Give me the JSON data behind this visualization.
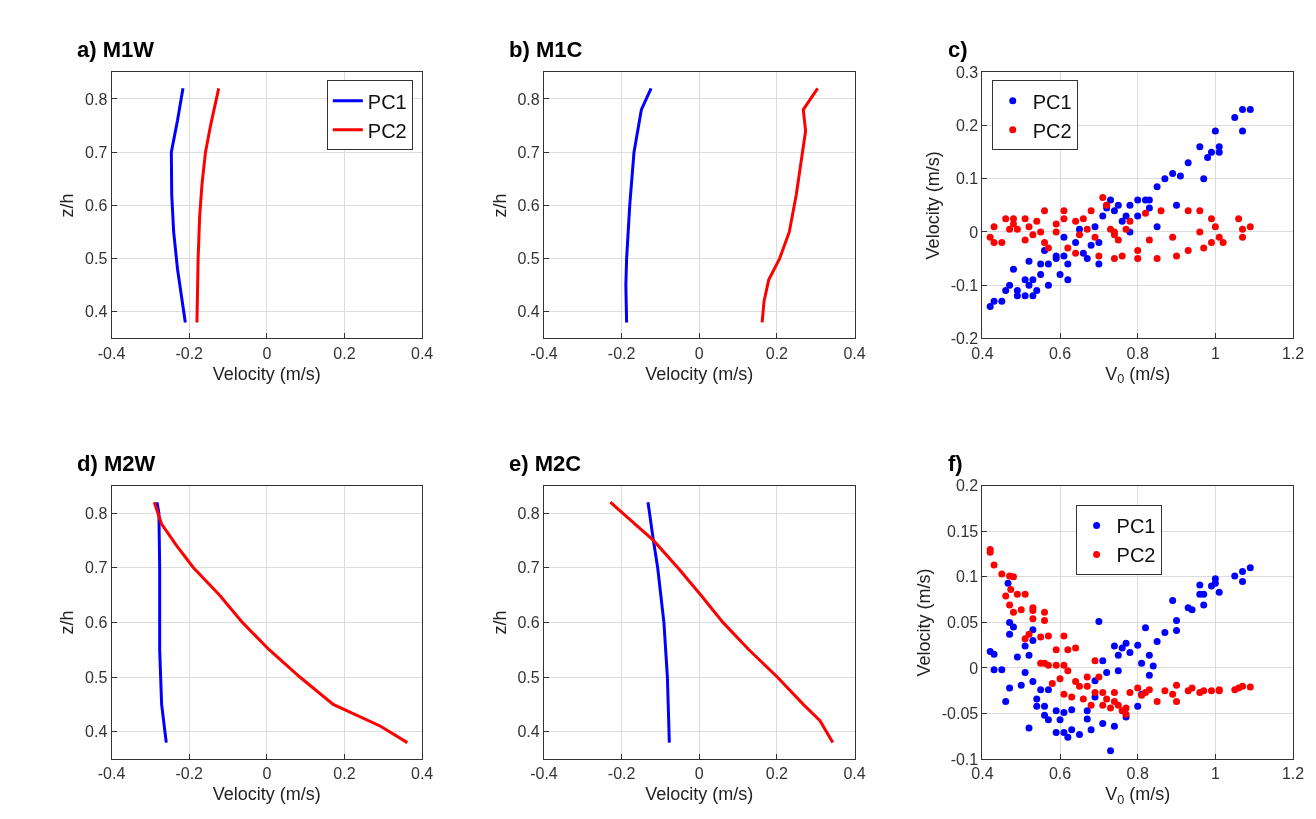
{
  "chart_data": [
    {
      "type": "line",
      "title": "a) M1W",
      "xlabel": "Velocity (m/s)",
      "ylabel": "z/h",
      "xlim": [
        -0.4,
        0.4
      ],
      "xticks": [
        -0.4,
        -0.2,
        0,
        0.2,
        0.4
      ],
      "ylim": [
        0.35,
        0.85
      ],
      "yticks": [
        0.4,
        0.5,
        0.6,
        0.7,
        0.8
      ],
      "grid": true,
      "legend": "top right",
      "series": [
        {
          "name": "PC1",
          "color": "#0000ff",
          "x": [
            -0.216,
            -0.23,
            -0.246,
            -0.245,
            -0.24,
            -0.23,
            -0.21
          ],
          "values": [
            0.82,
            0.76,
            0.7,
            0.62,
            0.55,
            0.48,
            0.38
          ]
        },
        {
          "name": "PC2",
          "color": "#ff0000",
          "x": [
            -0.124,
            -0.145,
            -0.158,
            -0.167,
            -0.173,
            -0.177,
            -0.18
          ],
          "values": [
            0.82,
            0.75,
            0.7,
            0.64,
            0.58,
            0.5,
            0.38
          ]
        }
      ]
    },
    {
      "type": "line",
      "title": "b) M1C",
      "xlabel": "Velocity (m/s)",
      "ylabel": "z/h",
      "xlim": [
        -0.4,
        0.4
      ],
      "xticks": [
        -0.4,
        -0.2,
        0,
        0.2,
        0.4
      ],
      "ylim": [
        0.35,
        0.85
      ],
      "yticks": [
        0.4,
        0.5,
        0.6,
        0.7,
        0.8
      ],
      "grid": true,
      "series": [
        {
          "color": "#0000ff",
          "x": [
            -0.124,
            -0.149,
            -0.168,
            -0.179,
            -0.187,
            -0.189,
            -0.187
          ],
          "values": [
            0.82,
            0.78,
            0.7,
            0.6,
            0.5,
            0.45,
            0.38
          ]
        },
        {
          "color": "#ff0000",
          "x": [
            0.305,
            0.268,
            0.274,
            0.25,
            0.232,
            0.207,
            0.179,
            0.167,
            0.162
          ],
          "values": [
            0.82,
            0.78,
            0.74,
            0.62,
            0.55,
            0.5,
            0.46,
            0.42,
            0.38
          ]
        }
      ]
    },
    {
      "type": "scatter",
      "title": "c)",
      "xlabel": "V$_{0}$ (m/s)",
      "ylabel": "Velocity (m/s)",
      "xlim": [
        0.4,
        1.2
      ],
      "xticks": [
        0.4,
        0.6,
        0.8,
        1,
        1.2
      ],
      "ylim": [
        -0.2,
        0.3
      ],
      "yticks": [
        -0.2,
        -0.1,
        0,
        0.1,
        0.2,
        0.3
      ],
      "grid": true,
      "legend": "top left",
      "marker": "circle",
      "series": [
        {
          "name": "PC1",
          "color": "#0000ff",
          "x": [
            0.42,
            0.43,
            0.45,
            0.46,
            0.47,
            0.48,
            0.49,
            0.49,
            0.51,
            0.51,
            0.52,
            0.52,
            0.53,
            0.53,
            0.54,
            0.55,
            0.55,
            0.56,
            0.57,
            0.57,
            0.59,
            0.59,
            0.6,
            0.61,
            0.61,
            0.62,
            0.62,
            0.64,
            0.65,
            0.66,
            0.67,
            0.68,
            0.69,
            0.7,
            0.7,
            0.71,
            0.72,
            0.72,
            0.73,
            0.74,
            0.75,
            0.76,
            0.77,
            0.78,
            0.78,
            0.8,
            0.8,
            0.82,
            0.83,
            0.83,
            0.85,
            0.85,
            0.87,
            0.89,
            0.9,
            0.91,
            0.93,
            0.96,
            0.97,
            0.98,
            0.99,
            1.0,
            1.01,
            1.01,
            1.05,
            1.07,
            1.07,
            1.09
          ],
          "values": [
            -0.14,
            -0.13,
            -0.13,
            -0.11,
            -0.1,
            -0.07,
            -0.11,
            -0.12,
            -0.09,
            -0.12,
            -0.055,
            -0.1,
            -0.12,
            -0.09,
            -0.11,
            -0.06,
            -0.08,
            -0.035,
            -0.1,
            -0.06,
            -0.05,
            -0.045,
            -0.08,
            -0.01,
            -0.045,
            -0.09,
            -0.06,
            -0.02,
            0.005,
            -0.04,
            -0.05,
            -0.025,
            0.01,
            -0.06,
            -0.02,
            0.03,
            0.045,
            0.05,
            0.06,
            0.04,
            0.05,
            0.02,
            0.03,
            0.05,
            0.0,
            0.03,
            0.06,
            0.06,
            0.06,
            0.045,
            0.01,
            0.085,
            0.1,
            0.11,
            0.05,
            0.105,
            0.13,
            0.16,
            0.1,
            0.14,
            0.15,
            0.19,
            0.16,
            0.15,
            0.215,
            0.19,
            0.23,
            0.23
          ]
        },
        {
          "name": "PC2",
          "color": "#ff0000",
          "x": [
            0.42,
            0.43,
            0.43,
            0.45,
            0.46,
            0.47,
            0.48,
            0.48,
            0.49,
            0.51,
            0.51,
            0.52,
            0.53,
            0.54,
            0.55,
            0.56,
            0.56,
            0.57,
            0.59,
            0.59,
            0.61,
            0.61,
            0.62,
            0.64,
            0.64,
            0.65,
            0.66,
            0.67,
            0.68,
            0.69,
            0.7,
            0.71,
            0.72,
            0.73,
            0.74,
            0.74,
            0.74,
            0.75,
            0.76,
            0.77,
            0.78,
            0.8,
            0.8,
            0.82,
            0.83,
            0.85,
            0.86,
            0.89,
            0.9,
            0.93,
            0.93,
            0.96,
            0.96,
            0.97,
            0.99,
            0.99,
            1.0,
            1.01,
            1.02,
            1.06,
            1.07,
            1.07,
            1.09
          ],
          "values": [
            -0.01,
            -0.02,
            0.01,
            -0.02,
            0.025,
            0.005,
            0.015,
            0.025,
            0.005,
            -0.015,
            0.025,
            0.01,
            -0.005,
            0.02,
            0.0,
            -0.02,
            0.04,
            -0.03,
            0.015,
            0.0,
            0.04,
            0.025,
            -0.03,
            0.02,
            -0.04,
            -0.005,
            0.025,
            0.005,
            0.04,
            -0.01,
            -0.045,
            0.065,
            0.05,
            0.005,
            -0.005,
            0.0,
            -0.05,
            -0.015,
            -0.045,
            0.005,
            0.02,
            -0.035,
            -0.05,
            0.035,
            -0.015,
            -0.05,
            0.04,
            -0.01,
            -0.045,
            0.04,
            -0.035,
            0.04,
            0.0,
            -0.03,
            -0.02,
            0.025,
            0.01,
            -0.01,
            -0.02,
            0.025,
            -0.01,
            0.005,
            0.01
          ]
        }
      ]
    },
    {
      "type": "line",
      "title": "d) M2W",
      "xlabel": "Velocity (m/s)",
      "ylabel": "z/h",
      "xlim": [
        -0.4,
        0.4
      ],
      "xticks": [
        -0.4,
        -0.2,
        0,
        0.2,
        0.4
      ],
      "ylim": [
        0.35,
        0.85
      ],
      "yticks": [
        0.4,
        0.5,
        0.6,
        0.7,
        0.8
      ],
      "grid": true,
      "series": [
        {
          "color": "#0000ff",
          "x": [
            -0.283,
            -0.278,
            -0.276,
            -0.276,
            -0.271,
            -0.259
          ],
          "values": [
            0.82,
            0.8,
            0.7,
            0.55,
            0.45,
            0.38
          ]
        },
        {
          "color": "#ff0000",
          "x": [
            -0.29,
            -0.271,
            -0.232,
            -0.189,
            -0.122,
            -0.063,
            0.006,
            0.085,
            0.171,
            0.293,
            0.362
          ],
          "values": [
            0.82,
            0.78,
            0.74,
            0.7,
            0.65,
            0.6,
            0.55,
            0.5,
            0.45,
            0.41,
            0.38
          ]
        }
      ]
    },
    {
      "type": "line",
      "title": "e) M2C",
      "xlabel": "Velocity (m/s)",
      "ylabel": "z/h",
      "xlim": [
        -0.4,
        0.4
      ],
      "xticks": [
        -0.4,
        -0.2,
        0,
        0.2,
        0.4
      ],
      "ylim": [
        0.35,
        0.85
      ],
      "yticks": [
        0.4,
        0.5,
        0.6,
        0.7,
        0.8
      ],
      "grid": true,
      "series": [
        {
          "color": "#0000ff",
          "x": [
            -0.132,
            -0.118,
            -0.107,
            -0.091,
            -0.082,
            -0.077
          ],
          "values": [
            0.82,
            0.75,
            0.7,
            0.6,
            0.5,
            0.38
          ]
        },
        {
          "color": "#ff0000",
          "x": [
            -0.229,
            -0.118,
            -0.055,
            0.004,
            0.061,
            0.128,
            0.201,
            0.268,
            0.311,
            0.344
          ],
          "values": [
            0.82,
            0.75,
            0.7,
            0.65,
            0.6,
            0.55,
            0.5,
            0.45,
            0.42,
            0.38
          ]
        }
      ]
    },
    {
      "type": "scatter",
      "title": "f)",
      "xlabel": "V$_{0}$ (m/s)",
      "ylabel": "Velocity (m/s)",
      "xlim": [
        0.4,
        1.2
      ],
      "xticks": [
        0.4,
        0.6,
        0.8,
        1,
        1.2
      ],
      "ylim": [
        -0.1,
        0.2
      ],
      "yticks": [
        -0.1,
        -0.05,
        0,
        0.05,
        0.1,
        0.15,
        0.2
      ],
      "grid": true,
      "legend": "top",
      "marker": "circle",
      "series": [
        {
          "name": "PC1",
          "color": "#0000ff",
          "x": [
            0.42,
            0.43,
            0.43,
            0.45,
            0.46,
            0.466,
            0.47,
            0.47,
            0.47,
            0.48,
            0.49,
            0.5,
            0.51,
            0.51,
            0.52,
            0.52,
            0.53,
            0.53,
            0.54,
            0.53,
            0.54,
            0.55,
            0.56,
            0.56,
            0.57,
            0.57,
            0.59,
            0.59,
            0.6,
            0.61,
            0.61,
            0.62,
            0.63,
            0.63,
            0.65,
            0.67,
            0.67,
            0.68,
            0.69,
            0.69,
            0.7,
            0.71,
            0.71,
            0.72,
            0.73,
            0.74,
            0.74,
            0.75,
            0.75,
            0.76,
            0.77,
            0.77,
            0.78,
            0.8,
            0.8,
            0.81,
            0.81,
            0.82,
            0.83,
            0.83,
            0.84,
            0.85,
            0.87,
            0.89,
            0.9,
            0.9,
            0.93,
            0.94,
            0.96,
            0.96,
            0.97,
            0.97,
            0.99,
            1.0,
            1.0,
            1.01,
            1.05,
            1.07,
            1.07,
            1.09
          ],
          "values": [
            0.018,
            0.015,
            -0.002,
            -0.002,
            -0.037,
            0.093,
            -0.022,
            0.05,
            0.037,
            0.045,
            0.012,
            -0.019,
            0.024,
            -0.005,
            -0.066,
            0.014,
            0.042,
            -0.015,
            -0.034,
            0.03,
            -0.042,
            -0.024,
            -0.052,
            -0.042,
            -0.024,
            -0.057,
            -0.071,
            -0.047,
            -0.057,
            -0.049,
            -0.071,
            -0.076,
            -0.046,
            -0.068,
            -0.073,
            -0.047,
            -0.056,
            -0.068,
            -0.032,
            -0.014,
            0.051,
            -0.061,
            0.008,
            -0.005,
            -0.091,
            0.024,
            -0.064,
            -0.003,
            0.014,
            0.022,
            0.027,
            -0.054,
            0.017,
            -0.042,
            0.025,
            -0.029,
            0.005,
            0.044,
            -0.008,
            0.014,
            0.002,
            0.029,
            0.039,
            0.074,
            0.041,
            0.052,
            0.066,
            0.064,
            0.091,
            0.081,
            0.069,
            0.081,
            0.09,
            0.098,
            0.093,
            0.083,
            0.101,
            0.095,
            0.106,
            0.11
          ]
        },
        {
          "name": "PC2",
          "color": "#ff0000",
          "x": [
            0.42,
            0.42,
            0.43,
            0.45,
            0.46,
            0.473,
            0.47,
            0.48,
            0.47,
            0.48,
            0.49,
            0.5,
            0.51,
            0.51,
            0.52,
            0.53,
            0.53,
            0.53,
            0.55,
            0.55,
            0.56,
            0.56,
            0.56,
            0.57,
            0.57,
            0.58,
            0.59,
            0.59,
            0.6,
            0.61,
            0.61,
            0.61,
            0.62,
            0.62,
            0.63,
            0.64,
            0.64,
            0.65,
            0.66,
            0.67,
            0.67,
            0.68,
            0.69,
            0.69,
            0.7,
            0.71,
            0.71,
            0.72,
            0.73,
            0.74,
            0.74,
            0.75,
            0.76,
            0.77,
            0.77,
            0.78,
            0.8,
            0.81,
            0.82,
            0.83,
            0.85,
            0.87,
            0.89,
            0.9,
            0.9,
            0.93,
            0.94,
            0.96,
            0.97,
            0.99,
            1.01,
            1.01,
            1.05,
            1.06,
            1.07,
            1.09
          ],
          "values": [
            0.13,
            0.127,
            0.113,
            0.103,
            0.079,
            0.086,
            0.101,
            0.1,
            0.069,
            0.061,
            0.081,
            0.064,
            0.081,
            0.032,
            0.037,
            0.054,
            0.063,
            0.066,
            0.034,
            0.005,
            0.052,
            0.061,
            0.005,
            0.035,
            0.003,
            -0.017,
            0.02,
            0.003,
            -0.012,
            0.003,
            0.035,
            -0.029,
            0.02,
            -0.003,
            -0.032,
            0.022,
            -0.015,
            -0.02,
            -0.034,
            -0.01,
            -0.02,
            -0.041,
            -0.027,
            0.008,
            -0.01,
            -0.027,
            -0.041,
            -0.034,
            -0.044,
            -0.027,
            -0.037,
            -0.041,
            -0.047,
            -0.051,
            -0.044,
            -0.027,
            -0.022,
            -0.03,
            -0.027,
            -0.024,
            -0.037,
            -0.025,
            -0.029,
            -0.019,
            -0.037,
            -0.025,
            -0.022,
            -0.027,
            -0.025,
            -0.025,
            -0.025,
            -0.024,
            -0.024,
            -0.022,
            -0.02,
            -0.021
          ]
        }
      ]
    }
  ]
}
